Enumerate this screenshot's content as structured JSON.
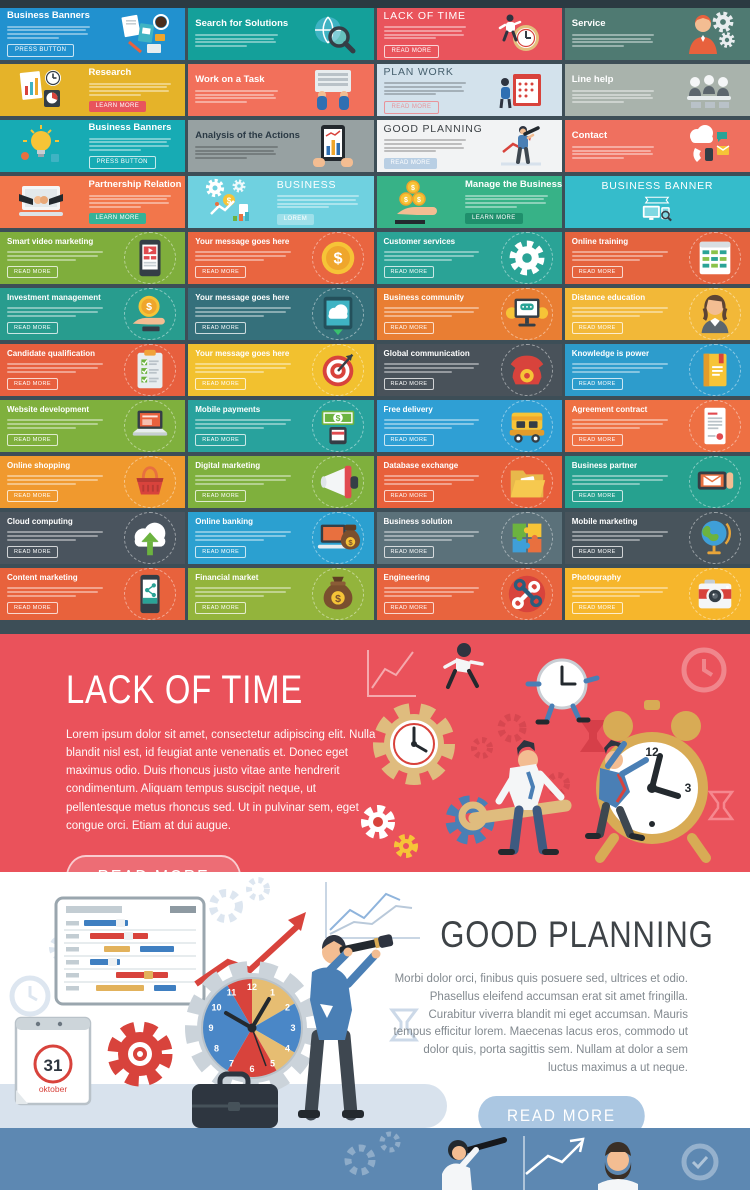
{
  "colors": {
    "page_bg": "#3d4e57",
    "topbar": "#2b3a42",
    "lack_bg": "#ea525b",
    "good_bg": "#ffffff",
    "footer_bg": "#5d88b2",
    "ground": "#d8e2ed"
  },
  "grid": {
    "cells": [
      {
        "title": "Business Banners",
        "button": "PRESS BUTTON",
        "bg": "#2191cf",
        "icon": "desk-flatlay",
        "layout": "tl",
        "big": true,
        "bs": "o"
      },
      {
        "title": "Search for Solutions",
        "bg": "#14a09a",
        "icon": "magnifier-globe",
        "layout": "tl",
        "big": true
      },
      {
        "title": "LACK OF TIME",
        "button": "READ MORE",
        "bg": "#e9545c",
        "icon": "clock-runner",
        "layout": "tl",
        "big": true,
        "bs": "o",
        "cond": true
      },
      {
        "title": "Service",
        "bg": "#4f7a72",
        "icon": "person-gears",
        "layout": "tl",
        "big": true
      },
      {
        "title": "Research",
        "button": "LEARN MORE",
        "bg": "#e5b329",
        "icon": "charts-documents",
        "layout": "tr",
        "big": true,
        "bs": "s",
        "bc": "#e8545c"
      },
      {
        "title": "Work on a Task",
        "bg": "#f2705b",
        "icon": "laptop-hands",
        "layout": "tl",
        "big": true
      },
      {
        "title": "PLAN WORK",
        "button": "READ MORE",
        "bg": "#d3e2ec",
        "tc": "#46606e",
        "icon": "calendar-people",
        "layout": "tl",
        "big": true,
        "bs": "o",
        "bc": "#e8949a",
        "dark": true,
        "cond": true
      },
      {
        "title": "Line help",
        "bg": "#a9b3ac",
        "icon": "helpdesk-people",
        "layout": "tl",
        "big": true
      },
      {
        "title": "Business Banners",
        "button": "PRESS BUTTON",
        "bg": "#17abb4",
        "icon": "idea-bulb",
        "layout": "tr",
        "big": true,
        "bs": "o"
      },
      {
        "title": "Analysis of the Actions",
        "bg": "#97a1a2",
        "tc": "#2b3a45",
        "icon": "tablet-chart-hands",
        "layout": "tl",
        "big": true,
        "dark": true
      },
      {
        "title": "GOOD PLANNING",
        "button": "READ MORE",
        "bg": "#f2f3f4",
        "tc": "#3e4347",
        "icon": "telescope-man",
        "layout": "tl",
        "big": true,
        "bs": "s",
        "bc": "#b9cfe4",
        "dark": true,
        "cond": true
      },
      {
        "title": "Contact",
        "bg": "#ef705f",
        "icon": "communication-icons",
        "layout": "tl",
        "big": true
      },
      {
        "title": "Partnership Relation",
        "button": "LEARN MORE",
        "bg": "#f2764b",
        "icon": "handshake-laptop",
        "layout": "tr",
        "big": true,
        "bs": "s",
        "bc": "#35b297"
      },
      {
        "title": "BUSINESS",
        "button": "LOREM",
        "bg": "#6fd1e0",
        "icon": "business-icons",
        "layout": "tr",
        "big": true,
        "bs": "s",
        "bc": "#9fe0ea",
        "cond": true
      },
      {
        "title": "Manage the Business",
        "button": "LEARN MORE",
        "bg": "#37b287",
        "icon": "hand-coins",
        "layout": "tr",
        "big": true,
        "bs": "s",
        "bc": "#1f8f6c"
      },
      {
        "title": "BUSINESS BANNER",
        "bg": "#35bccb",
        "icon": "devices-ribbon",
        "layout": "tc",
        "big": true,
        "cond": true
      },
      {
        "title": "Smart video marketing",
        "button": "READ MORE",
        "bg": "#7fae3c",
        "icon": "tablet-video",
        "layout": "tl",
        "bs": "o"
      },
      {
        "title": "Your message goes here",
        "button": "READ MORE",
        "bg": "#e96540",
        "icon": "dollar-coin",
        "layout": "tl",
        "bs": "o"
      },
      {
        "title": "Customer services",
        "button": "READ MORE",
        "bg": "#2aa396",
        "icon": "gear",
        "layout": "tl",
        "bs": "o"
      },
      {
        "title": "Online training",
        "button": "READ MORE",
        "bg": "#e5633e",
        "icon": "schedule-board",
        "layout": "tl",
        "bs": "o"
      },
      {
        "title": "Investment management",
        "button": "READ MORE",
        "bg": "#289c8e",
        "icon": "coin-hand",
        "layout": "tl",
        "bs": "o"
      },
      {
        "title": "Your message goes here",
        "button": "READ MORE",
        "bg": "#35707b",
        "icon": "cloud-tablet",
        "layout": "tl",
        "bs": "o"
      },
      {
        "title": "Business community",
        "button": "READ MORE",
        "bg": "#e97e33",
        "icon": "chat-monitor",
        "layout": "tl",
        "bs": "o"
      },
      {
        "title": "Distance education",
        "button": "READ MORE",
        "bg": "#f2b838",
        "icon": "woman-avatar",
        "layout": "tl",
        "bs": "o"
      },
      {
        "title": "Candidate qualification",
        "button": "READ MORE",
        "bg": "#e75f3e",
        "icon": "checklist-clipboard",
        "layout": "tl",
        "bs": "o"
      },
      {
        "title": "Your message goes here",
        "button": "READ MORE",
        "bg": "#f2c12f",
        "icon": "target-arrow",
        "layout": "tl",
        "bs": "o"
      },
      {
        "title": "Global communication",
        "button": "READ MORE",
        "bg": "#49525a",
        "icon": "telephone",
        "layout": "tl",
        "bs": "o"
      },
      {
        "title": "Knowledge is power",
        "button": "READ MORE",
        "bg": "#2d9ccc",
        "icon": "book",
        "layout": "tl",
        "bs": "o"
      },
      {
        "title": "Website development",
        "button": "READ MORE",
        "bg": "#7fb03d",
        "icon": "laptop",
        "layout": "tl",
        "bs": "o"
      },
      {
        "title": "Mobile payments",
        "button": "READ MORE",
        "bg": "#28a29d",
        "icon": "banknote-phone",
        "layout": "tl",
        "bs": "o"
      },
      {
        "title": "Free delivery",
        "button": "READ MORE",
        "bg": "#2f9fd4",
        "icon": "delivery-truck",
        "layout": "tl",
        "bs": "o"
      },
      {
        "title": "Agreement contract",
        "button": "READ MORE",
        "bg": "#ee7043",
        "icon": "contract-document",
        "layout": "tl",
        "bs": "o"
      },
      {
        "title": "Online shopping",
        "button": "READ MORE",
        "bg": "#f0992e",
        "icon": "shopping-basket",
        "layout": "tl",
        "bs": "o"
      },
      {
        "title": "Digital marketing",
        "button": "READ MORE",
        "bg": "#7fb03d",
        "icon": "megaphone",
        "layout": "tl",
        "bs": "o"
      },
      {
        "title": "Database exchange",
        "button": "READ MORE",
        "bg": "#e8603b",
        "icon": "folder",
        "layout": "tl",
        "bs": "o"
      },
      {
        "title": "Business partner",
        "button": "READ MORE",
        "bg": "#26a18f",
        "icon": "envelope-phone",
        "layout": "tl",
        "bs": "o"
      },
      {
        "title": "Cloud computing",
        "button": "READ MORE",
        "bg": "#4a545e",
        "icon": "cloud-upload",
        "layout": "tl",
        "bs": "o"
      },
      {
        "title": "Online banking",
        "button": "READ MORE",
        "bg": "#2ba0d0",
        "icon": "moneybag-laptop",
        "layout": "tl",
        "bs": "o"
      },
      {
        "title": "Business solution",
        "button": "READ MORE",
        "bg": "#5b717a",
        "icon": "puzzle",
        "layout": "tl",
        "bs": "o"
      },
      {
        "title": "Mobile marketing",
        "button": "READ MORE",
        "bg": "#48545c",
        "icon": "globe",
        "layout": "tl",
        "bs": "o"
      },
      {
        "title": "Content marketing",
        "button": "READ MORE",
        "bg": "#e8623c",
        "icon": "share-phone",
        "layout": "tl",
        "bs": "o"
      },
      {
        "title": "Financial market",
        "button": "READ MORE",
        "bg": "#93b43c",
        "icon": "moneybag",
        "layout": "tl",
        "bs": "o"
      },
      {
        "title": "Engineering",
        "button": "READ MORE",
        "bg": "#e8643e",
        "icon": "wrenches",
        "layout": "tl",
        "bs": "o"
      },
      {
        "title": "Photography",
        "button": "READ MORE",
        "bg": "#f6b62c",
        "icon": "camera",
        "layout": "tl",
        "bs": "o"
      }
    ]
  },
  "lack_of_time": {
    "title": "LACK OF TIME",
    "body": "Lorem ipsum dolor sit amet, consectetur adipiscing elit. Nulla blandit nisl est, id feugiat ante venenatis et. Donec eget maximus odio. Duis rhoncus justo vitae ante hendrerit condimentum. Aliquam tempus suscipit neque, ut pellentesque metus rhoncus sed. Ut in pulvinar sem, eget congue orci. Etiam at dui augue.",
    "button": "READ MORE"
  },
  "good_planning": {
    "title": "GOOD PLANNING",
    "body": "Morbi dolor orci, finibus quis posuere sed, ultrices et odio. Phasellus eleifend accumsan erat sit amet fringilla. Curabitur viverra blandit mi eget accumsan. Mauris tempus efficitur lorem. Maecenas lacus eros, commodo ut dolor quis, porta sagittis sem. Nullam at dolor a sem luctus maximus a ut neque.",
    "button": "READ MORE",
    "calendar_day": "31",
    "calendar_month": "oktober",
    "clock_numbers": [
      "12",
      "1",
      "2",
      "3",
      "4",
      "5",
      "6",
      "7",
      "8",
      "9",
      "10",
      "11"
    ]
  }
}
